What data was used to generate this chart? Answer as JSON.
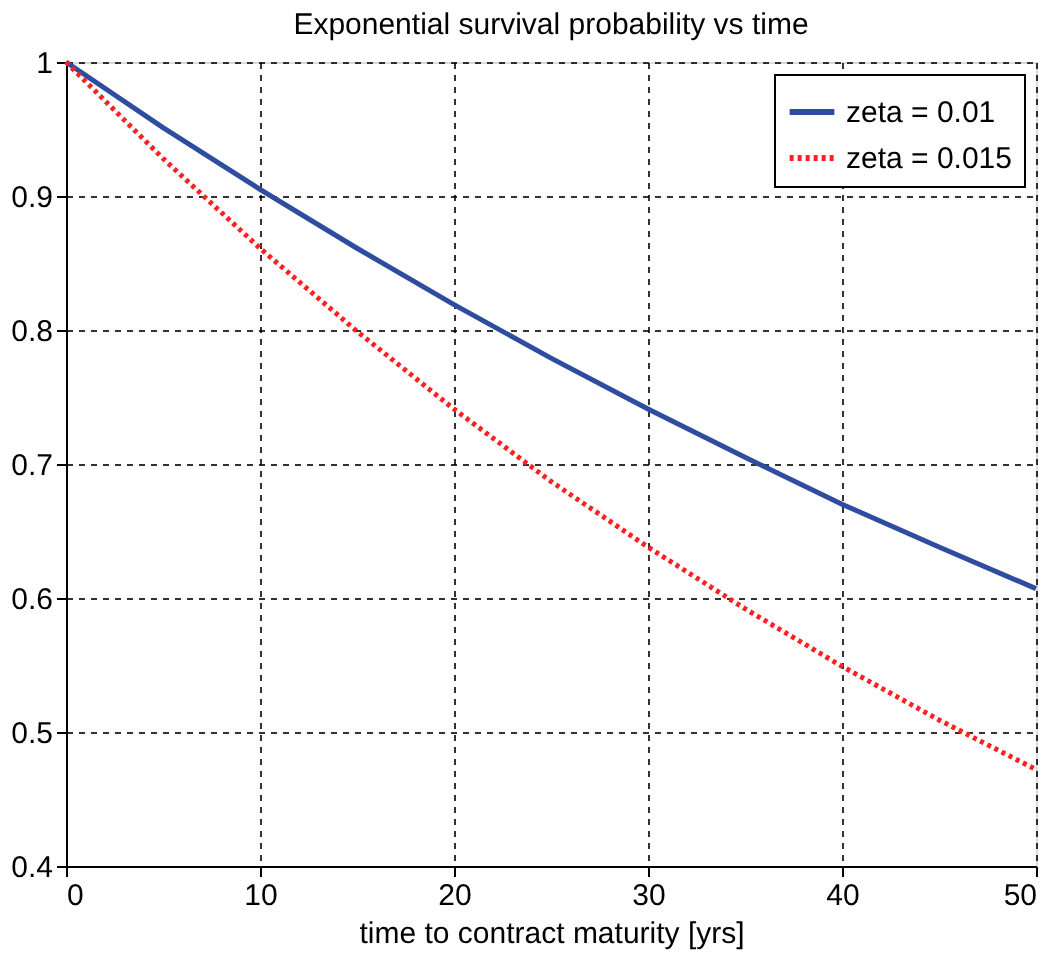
{
  "chart_data": {
    "type": "line",
    "title": "Exponential survival probability vs time",
    "xlabel": "time to contract maturity [yrs]",
    "x": [
      0,
      5,
      10,
      15,
      20,
      25,
      30,
      35,
      40,
      45,
      50
    ],
    "series": [
      {
        "name": "zeta = 0.01",
        "color": "#2e4da0",
        "line_style": "solid",
        "values": [
          1,
          0.951,
          0.905,
          0.861,
          0.819,
          0.779,
          0.741,
          0.705,
          0.67,
          0.638,
          0.607
        ]
      },
      {
        "name": "zeta = 0.015",
        "color": "#ff2020",
        "line_style": "dotted",
        "values": [
          1,
          0.928,
          0.861,
          0.799,
          0.741,
          0.687,
          0.638,
          0.592,
          0.549,
          0.509,
          0.472
        ]
      }
    ],
    "xlim": [
      0,
      50
    ],
    "xticks": [
      0,
      10,
      20,
      30,
      40,
      50
    ],
    "ylim": [
      0.4,
      1.0
    ],
    "yticks": [
      0.4,
      0.5,
      0.6,
      0.7,
      0.8,
      0.9,
      {
        "value": 1,
        "label": "1"
      }
    ],
    "grid": true,
    "legend": "top right",
    "marker": "none"
  }
}
